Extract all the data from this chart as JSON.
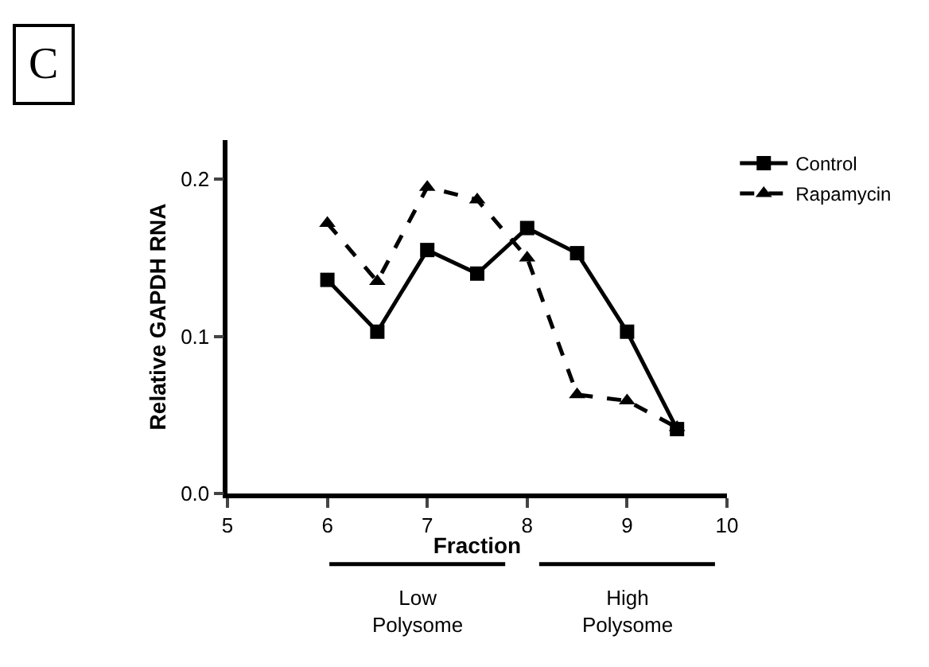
{
  "chart_data": {
    "type": "line",
    "xlabel": "Fraction",
    "ylabel": "Relative GAPDH RNA",
    "x": [
      6,
      6.5,
      7,
      7.5,
      8,
      8.5,
      9,
      9.5
    ],
    "series": [
      {
        "name": "Control",
        "color": "#000000",
        "marker": "square",
        "line_style": "solid",
        "values": [
          0.136,
          0.103,
          0.155,
          0.14,
          0.169,
          0.153,
          0.103,
          0.041
        ]
      },
      {
        "name": "Rapamycin",
        "color": "#000000",
        "marker": "triangle",
        "line_style": "dashed",
        "values": [
          0.172,
          0.135,
          0.195,
          0.187,
          0.15,
          0.063,
          0.059,
          0.042
        ]
      }
    ],
    "xlim": [
      5,
      10
    ],
    "xticks": [
      5,
      6,
      7,
      8,
      9,
      10
    ],
    "ylim": [
      0,
      0.225
    ],
    "yticks": [
      {
        "value": 0,
        "label": "0.0"
      },
      0.1,
      0.2
    ],
    "annotations": [
      "C",
      "Low\nPolysome",
      "High\nPolysome"
    ],
    "legend": "top right"
  }
}
